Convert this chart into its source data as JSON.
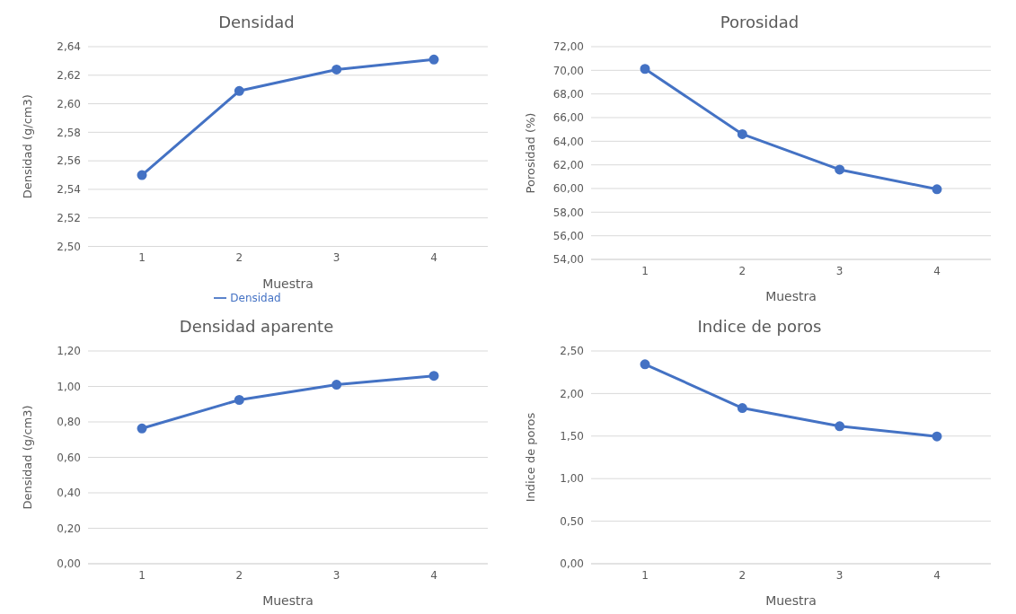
{
  "chart_data": [
    {
      "type": "line",
      "title": "Densidad",
      "xlabel": "Muestra",
      "ylabel": "Densidad (g/cm3)",
      "categories": [
        "1",
        "2",
        "3",
        "4"
      ],
      "series": [
        {
          "name": "Densidad",
          "color": "#4472c4",
          "values": [
            2.55,
            2.609,
            2.624,
            2.631
          ]
        }
      ],
      "ylim": [
        2.5,
        2.64
      ],
      "yticks": [
        {
          "value": 2.5,
          "label": "2,50"
        },
        {
          "value": 2.52,
          "label": "2,52"
        },
        {
          "value": 2.54,
          "label": "2,54"
        },
        {
          "value": 2.56,
          "label": "2,56"
        },
        {
          "value": 2.58,
          "label": "2,58"
        },
        {
          "value": 2.6,
          "label": "2,60"
        },
        {
          "value": 2.62,
          "label": "2,62"
        },
        {
          "value": 2.64,
          "label": "2,64"
        }
      ],
      "grid": "y",
      "legend": "bottom",
      "marker": "circle"
    },
    {
      "type": "line",
      "title": "Porosidad",
      "xlabel": "Muestra",
      "ylabel": "Porosidad (%)",
      "categories": [
        "1",
        "2",
        "3",
        "4"
      ],
      "series": [
        {
          "color": "#4472c4",
          "values": [
            70.12,
            64.6,
            61.6,
            59.94
          ]
        }
      ],
      "ylim": [
        54,
        72
      ],
      "yticks": [
        {
          "value": 54,
          "label": "54,00"
        },
        {
          "value": 56,
          "label": "56,00"
        },
        {
          "value": 58,
          "label": "58,00"
        },
        {
          "value": 60,
          "label": "60,00"
        },
        {
          "value": 62,
          "label": "62,00"
        },
        {
          "value": 64,
          "label": "64,00"
        },
        {
          "value": 66,
          "label": "66,00"
        },
        {
          "value": 68,
          "label": "68,00"
        },
        {
          "value": 70,
          "label": "70,00"
        },
        {
          "value": 72,
          "label": "72,00"
        }
      ],
      "grid": "y",
      "marker": "circle"
    },
    {
      "type": "line",
      "title": "Densidad aparente",
      "xlabel": "Muestra",
      "ylabel": "Densidad (g/cm3)",
      "categories": [
        "1",
        "2",
        "3",
        "4"
      ],
      "series": [
        {
          "color": "#4472c4",
          "values": [
            0.763,
            0.924,
            1.01,
            1.06
          ]
        }
      ],
      "ylim": [
        0,
        1.2
      ],
      "yticks": [
        {
          "value": 0,
          "label": "0,00"
        },
        {
          "value": 0.2,
          "label": "0,20"
        },
        {
          "value": 0.4,
          "label": "0,40"
        },
        {
          "value": 0.6,
          "label": "0,60"
        },
        {
          "value": 0.8,
          "label": "0,80"
        },
        {
          "value": 1,
          "label": "1,00"
        },
        {
          "value": 1.2,
          "label": "1,20"
        }
      ],
      "grid": "y",
      "marker": "circle"
    },
    {
      "type": "line",
      "title": "Indice de poros",
      "xlabel": "Muestra",
      "ylabel": "Indice de poros",
      "categories": [
        "1",
        "2",
        "3",
        "4"
      ],
      "series": [
        {
          "color": "#4472c4",
          "values": [
            2.344,
            1.83,
            1.616,
            1.496
          ]
        }
      ],
      "ylim": [
        0,
        2.5
      ],
      "yticks": [
        {
          "value": 0,
          "label": "0,00"
        },
        {
          "value": 0.5,
          "label": "0,50"
        },
        {
          "value": 1,
          "label": "1,00"
        },
        {
          "value": 1.5,
          "label": "1,50"
        },
        {
          "value": 2,
          "label": "2,00"
        },
        {
          "value": 2.5,
          "label": "2,50"
        }
      ],
      "grid": "y",
      "marker": "circle"
    }
  ]
}
